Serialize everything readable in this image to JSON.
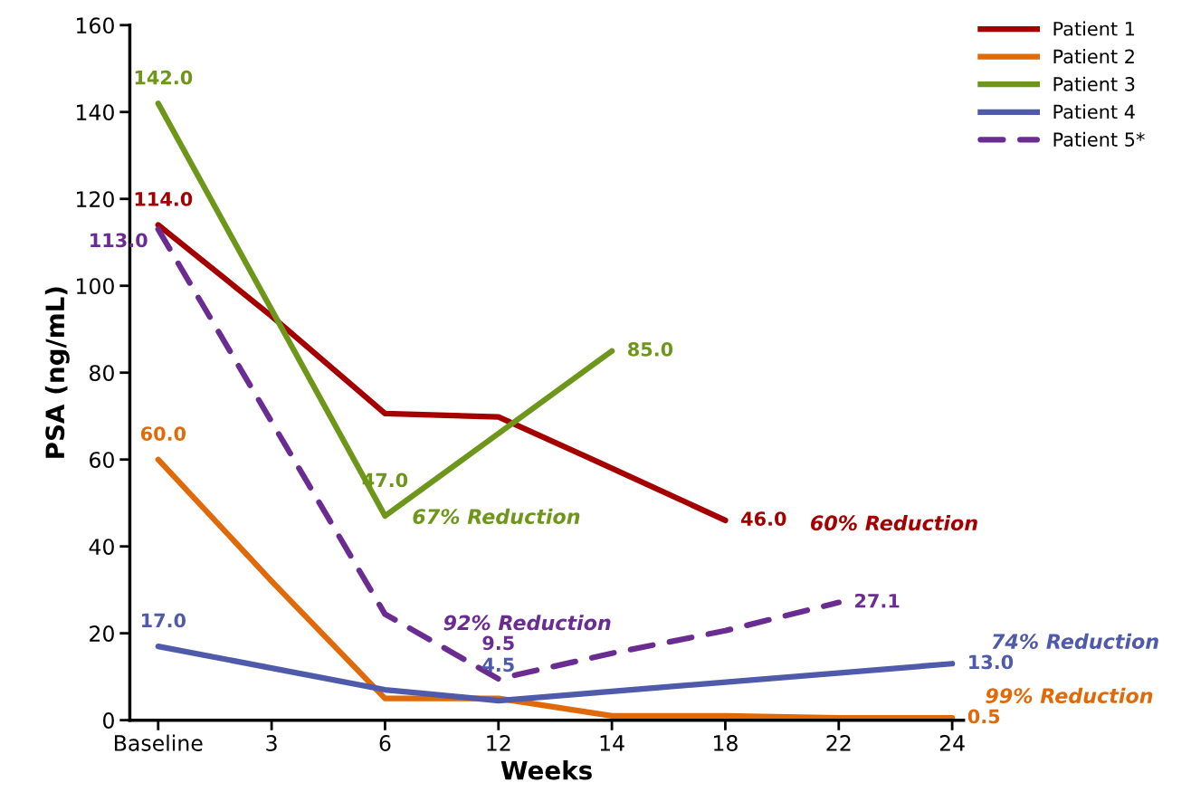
{
  "chart_data": {
    "type": "line",
    "xlabel": "Weeks",
    "ylabel": "PSA (ng/mL)",
    "categories": [
      "Baseline",
      "3",
      "6",
      "12",
      "14",
      "18",
      "22",
      "24"
    ],
    "ylim": [
      0,
      160
    ],
    "yticks": [
      0,
      20,
      40,
      60,
      80,
      100,
      120,
      140,
      160
    ],
    "grid": false,
    "legend": "top right",
    "marker": "none",
    "series": [
      {
        "name": "Patient 1",
        "color": "#a50000",
        "values": [
          114,
          93,
          70.6,
          69.8,
          58,
          46,
          null,
          null
        ],
        "value_labels": [
          "114.0",
          null,
          null,
          null,
          null,
          "46.0",
          null,
          null
        ]
      },
      {
        "name": "Patient 2",
        "color": "#e06a0a",
        "values": [
          60,
          32,
          5,
          5,
          1,
          1,
          0.5,
          0.5
        ],
        "value_labels": [
          "60.0",
          null,
          null,
          null,
          null,
          null,
          null,
          "0.5"
        ]
      },
      {
        "name": "Patient 3",
        "color": "#6e961a",
        "values": [
          142,
          null,
          47,
          null,
          85,
          null,
          null,
          null
        ],
        "value_labels": [
          "142.0",
          null,
          "47.0",
          null,
          "85.0",
          null,
          null,
          null
        ]
      },
      {
        "name": "Patient 4",
        "color": "#4f5aab",
        "values": [
          17,
          12,
          7,
          4.5,
          null,
          null,
          null,
          13
        ],
        "value_labels": [
          "17.0",
          null,
          null,
          "4.5",
          null,
          null,
          null,
          "13.0"
        ]
      },
      {
        "name": "Patient 5*",
        "color": "#6b2c91",
        "line_style": "dashed",
        "values": [
          113,
          null,
          24.4,
          9.5,
          15.4,
          20.6,
          27.1,
          null
        ],
        "value_labels": [
          "113.0",
          null,
          null,
          "9.5",
          null,
          null,
          "27.1",
          null
        ]
      }
    ],
    "annotations": [
      "60% Reduction",
      "67% Reduction",
      "92% Reduction",
      "74% Reduction",
      "99% Reduction"
    ]
  }
}
